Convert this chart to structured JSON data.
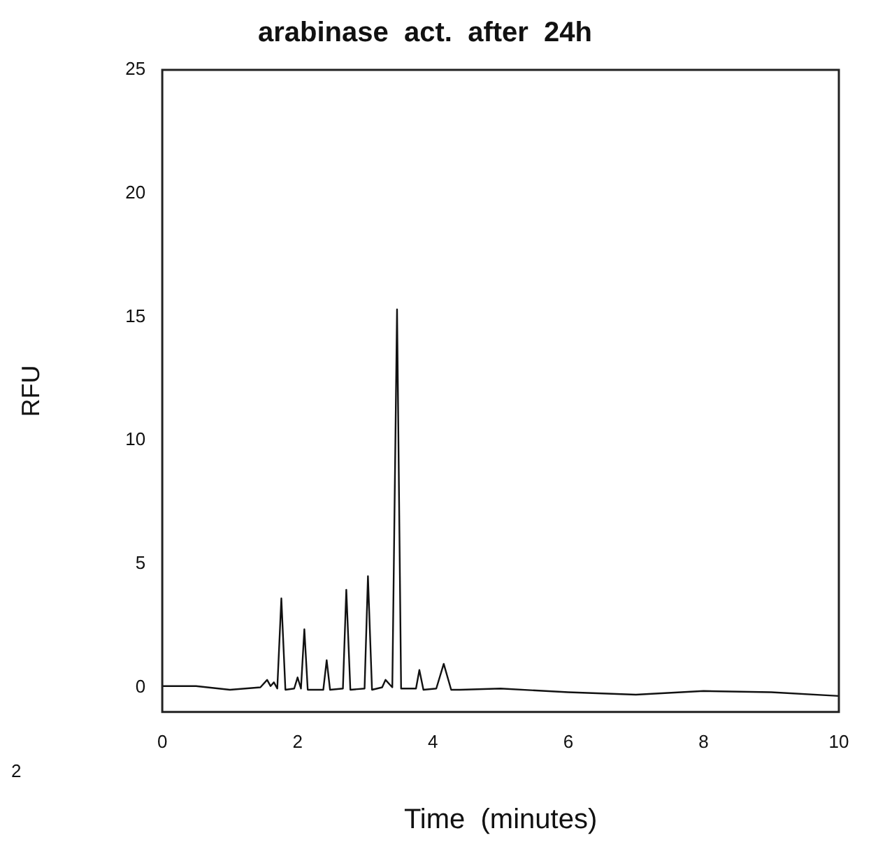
{
  "chart_data": {
    "type": "line",
    "title": "arabinase  act.  after  24h",
    "xlabel": "Time  (minutes)",
    "ylabel": "RFU",
    "annotations": [
      "2"
    ],
    "xlim": [
      0,
      10
    ],
    "xticks": [
      0,
      2,
      4,
      6,
      8,
      10
    ],
    "ylim": [
      -1,
      25
    ],
    "yticks": [
      0,
      5,
      10,
      15,
      20,
      25
    ],
    "marker": "none",
    "line_style": "solid",
    "series": [
      {
        "color": "#111111",
        "x": [
          0,
          0.5,
          1,
          1.45,
          1.55,
          1.6,
          1.65,
          1.7,
          1.76,
          1.82,
          1.95,
          2.0,
          2.05,
          2.1,
          2.15,
          2.38,
          2.43,
          2.48,
          2.67,
          2.72,
          2.78,
          2.99,
          3.04,
          3.1,
          3.25,
          3.3,
          3.4,
          3.47,
          3.53,
          3.6,
          3.75,
          3.8,
          3.86,
          4.05,
          4.16,
          4.27,
          4.4,
          5,
          6,
          7,
          8,
          9,
          10
        ],
        "values": [
          0.05,
          0.05,
          -0.1,
          0,
          0.3,
          0.05,
          0.2,
          -0.05,
          3.6,
          -0.1,
          -0.05,
          0.4,
          -0.05,
          2.35,
          -0.1,
          -0.1,
          1.1,
          -0.1,
          -0.05,
          3.95,
          -0.1,
          -0.05,
          4.5,
          -0.1,
          0,
          0.3,
          0,
          15.3,
          -0.05,
          -0.05,
          -0.05,
          0.7,
          -0.1,
          -0.05,
          0.95,
          -0.1,
          -0.1,
          -0.05,
          -0.2,
          -0.3,
          -0.15,
          -0.2,
          -0.35
        ]
      }
    ]
  }
}
